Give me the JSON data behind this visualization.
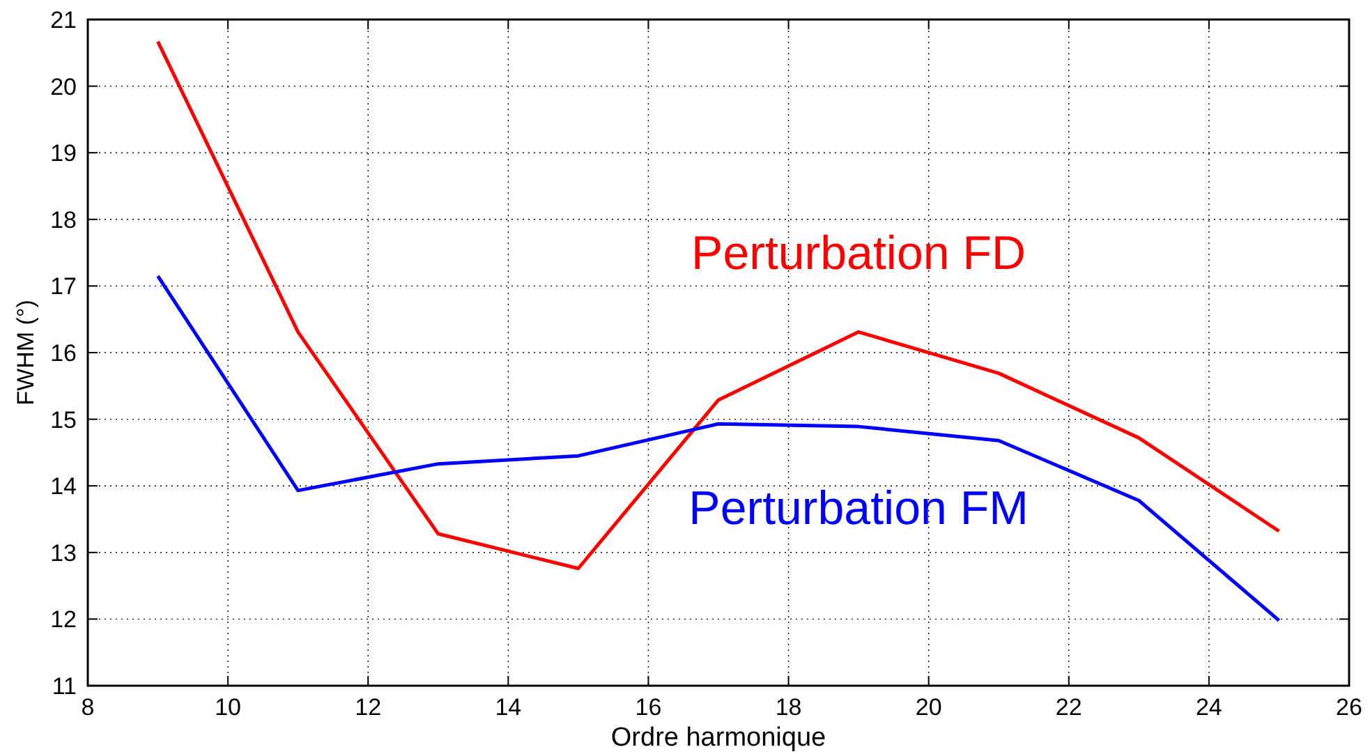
{
  "chart_data": {
    "type": "line",
    "xlabel": "Ordre harmonique",
    "ylabel": "FWHM (°)",
    "x": [
      9,
      11,
      13,
      15,
      17,
      19,
      21,
      23,
      25
    ],
    "series": [
      {
        "name": "Perturbation FD",
        "color": "#ff0000",
        "values": [
          20.67,
          16.31,
          13.28,
          12.76,
          15.29,
          16.31,
          15.69,
          14.72,
          13.32
        ]
      },
      {
        "name": "Perturbation FM",
        "color": "#0000ff",
        "values": [
          17.15,
          13.93,
          14.33,
          14.45,
          14.93,
          14.89,
          14.68,
          13.78,
          11.98
        ]
      }
    ],
    "xlim": [
      8,
      26
    ],
    "xticks": [
      8,
      10,
      12,
      14,
      16,
      18,
      20,
      22,
      24,
      26
    ],
    "ylim": [
      11,
      21
    ],
    "yticks": [
      11,
      12,
      13,
      14,
      15,
      16,
      17,
      18,
      19,
      20,
      21
    ],
    "grid": true,
    "marker": "none",
    "line_style": "solid"
  }
}
